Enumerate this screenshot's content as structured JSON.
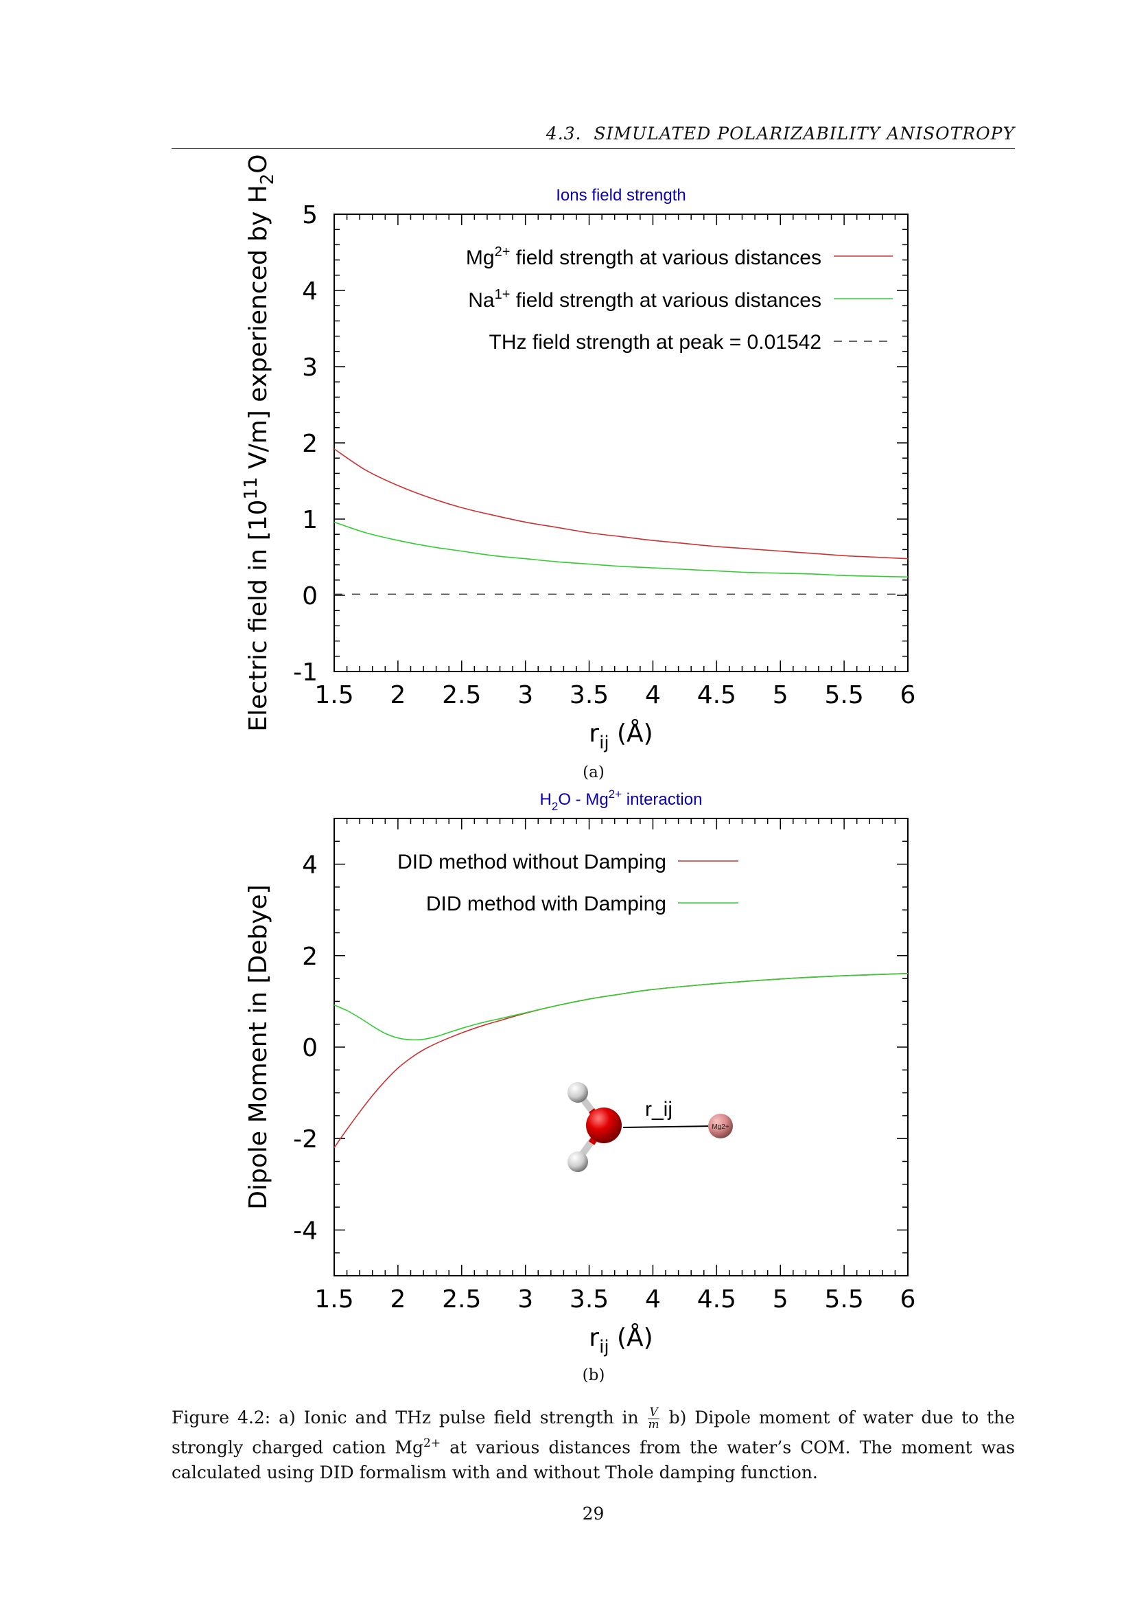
{
  "header": {
    "section": "4.3.",
    "title": "SIMULATED POLARIZABILITY ANISOTROPY"
  },
  "colors": {
    "red": "#cc3333",
    "green": "#33cc33",
    "title_blue": "#0a00b0",
    "dashed": "#333333"
  },
  "chart_data": [
    {
      "type": "line",
      "title": "Ions field strength",
      "xlabel": "r",
      "xlabel_sub": "ij",
      "xlabel_tail": " (Å)",
      "ylabel_parts": [
        "Electric field in [10",
        "11",
        " V/m] experienced by H",
        "2",
        "O"
      ],
      "xlim": [
        1.5,
        6
      ],
      "ylim": [
        -1,
        5
      ],
      "xticks": [
        "1.5",
        "2",
        "2.5",
        "3",
        "3.5",
        "4",
        "4.5",
        "5",
        "5.5",
        "6"
      ],
      "yticks": [
        "-1",
        "0",
        "1",
        "2",
        "3",
        "4",
        "5"
      ],
      "legend_position": "top-right",
      "series": [
        {
          "name_parts": [
            "Mg",
            "2+",
            " field strength at various distances"
          ],
          "color": "#cc3333",
          "style": "solid",
          "x": [
            1.5,
            1.75,
            2.0,
            2.25,
            2.5,
            2.75,
            3.0,
            3.25,
            3.5,
            3.75,
            4.0,
            4.25,
            4.5,
            4.75,
            5.0,
            5.25,
            5.5,
            5.75,
            6.0
          ],
          "y": [
            1.92,
            1.64,
            1.44,
            1.28,
            1.15,
            1.05,
            0.96,
            0.89,
            0.82,
            0.77,
            0.72,
            0.68,
            0.64,
            0.61,
            0.58,
            0.55,
            0.52,
            0.5,
            0.48
          ]
        },
        {
          "name_parts": [
            "Na",
            "1+",
            " field strength at various distances"
          ],
          "color": "#33cc33",
          "style": "solid",
          "x": [
            1.5,
            1.75,
            2.0,
            2.25,
            2.5,
            2.75,
            3.0,
            3.25,
            3.5,
            3.75,
            4.0,
            4.25,
            4.5,
            4.75,
            5.0,
            5.25,
            5.5,
            5.75,
            6.0
          ],
          "y": [
            0.96,
            0.82,
            0.72,
            0.64,
            0.58,
            0.52,
            0.48,
            0.44,
            0.41,
            0.38,
            0.36,
            0.34,
            0.32,
            0.3,
            0.29,
            0.28,
            0.26,
            0.25,
            0.24
          ]
        },
        {
          "name": "THz field strength at peak = 0.01542",
          "color": "#333333",
          "style": "dashed",
          "x": [
            1.5,
            6.0
          ],
          "y": [
            0.01542,
            0.01542
          ]
        }
      ]
    },
    {
      "type": "line",
      "title_parts": [
        "H",
        "2",
        "O - Mg",
        "2+",
        " interaction"
      ],
      "xlabel": "r",
      "xlabel_sub": "ij",
      "xlabel_tail": " (Å)",
      "ylabel": "Dipole Moment in [Debye]",
      "xlim": [
        1.5,
        6
      ],
      "ylim": [
        -5,
        5
      ],
      "xticks": [
        "1.5",
        "2",
        "2.5",
        "3",
        "3.5",
        "4",
        "4.5",
        "5",
        "5.5",
        "6"
      ],
      "yticks": [
        "-4",
        "-2",
        "0",
        "2",
        "4"
      ],
      "legend_position": "top-left",
      "inset_label": "r_ij",
      "inset_ion_label": "Mg2+",
      "series": [
        {
          "name": "DID method without Damping",
          "color": "#cc3333",
          "style": "solid",
          "x": [
            1.5,
            1.6,
            1.7,
            1.8,
            1.9,
            2.0,
            2.1,
            2.2,
            2.3,
            2.4,
            2.5,
            2.6,
            2.7,
            2.8,
            3.0,
            3.25,
            3.5,
            3.75,
            4.0,
            4.5,
            5.0,
            5.5,
            6.0
          ],
          "y": [
            -2.2,
            -1.8,
            -1.42,
            -1.06,
            -0.74,
            -0.46,
            -0.24,
            -0.06,
            0.08,
            0.2,
            0.31,
            0.41,
            0.5,
            0.58,
            0.74,
            0.91,
            1.05,
            1.16,
            1.26,
            1.39,
            1.49,
            1.56,
            1.61
          ]
        },
        {
          "name": "DID method with Damping",
          "color": "#33cc33",
          "style": "solid",
          "x": [
            1.5,
            1.6,
            1.7,
            1.8,
            1.9,
            2.0,
            2.1,
            2.2,
            2.3,
            2.4,
            2.5,
            2.6,
            2.7,
            2.8,
            3.0,
            3.25,
            3.5,
            3.75,
            4.0,
            4.5,
            5.0,
            5.5,
            6.0
          ],
          "y": [
            0.92,
            0.8,
            0.64,
            0.46,
            0.3,
            0.2,
            0.16,
            0.17,
            0.23,
            0.32,
            0.41,
            0.49,
            0.56,
            0.62,
            0.75,
            0.91,
            1.05,
            1.16,
            1.26,
            1.39,
            1.49,
            1.56,
            1.61
          ]
        }
      ]
    }
  ],
  "subcaptions": {
    "a": "(a)",
    "b": "(b)"
  },
  "caption": {
    "label": "Figure 4.2:",
    "text1": " a) Ionic and THz pulse field strength in ",
    "frac_num": "V",
    "frac_den": "m",
    "text2": " b) Dipole moment of water due to the strongly charged cation Mg",
    "sup": "2+",
    "text3": " at various distances from the water’s COM. The moment was calculated using DID formalism with and without Thole damping function."
  },
  "page_number": "29"
}
